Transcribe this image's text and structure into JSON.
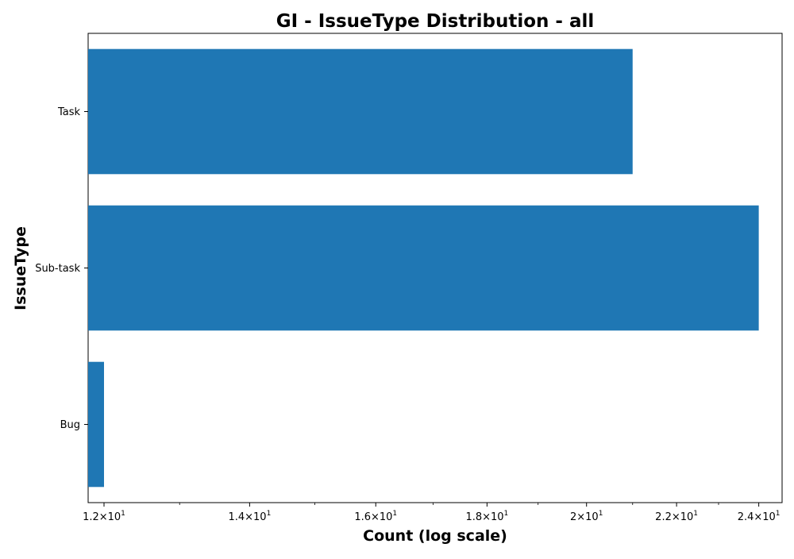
{
  "chart_data": {
    "type": "bar",
    "orientation": "horizontal",
    "title": "GI - IssueType Distribution - all",
    "xlabel": "Count (log scale)",
    "ylabel": "IssueType",
    "x_scale": "log",
    "xlim": [
      11.8,
      24.6
    ],
    "x_ticks": [
      {
        "value": 12,
        "mantissa": "1.2",
        "base": "10",
        "exponent": "1"
      },
      {
        "value": 14,
        "mantissa": "1.4",
        "base": "10",
        "exponent": "1"
      },
      {
        "value": 16,
        "mantissa": "1.6",
        "base": "10",
        "exponent": "1"
      },
      {
        "value": 18,
        "mantissa": "1.8",
        "base": "10",
        "exponent": "1"
      },
      {
        "value": 20,
        "mantissa": "2",
        "base": "10",
        "exponent": "1"
      },
      {
        "value": 22,
        "mantissa": "2.2",
        "base": "10",
        "exponent": "1"
      },
      {
        "value": 24,
        "mantissa": "2.4",
        "base": "10",
        "exponent": "1"
      }
    ],
    "categories": [
      "Task",
      "Sub-task",
      "Bug"
    ],
    "values": [
      21,
      24,
      12
    ],
    "bar_color": "#1f77b4",
    "grid": false,
    "legend": "none"
  }
}
